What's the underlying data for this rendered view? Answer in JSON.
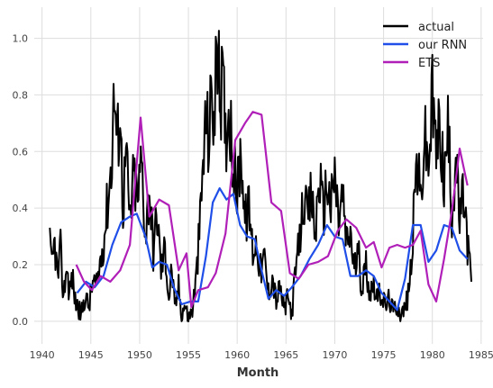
{
  "chart_data": {
    "type": "line",
    "title": "",
    "xlabel": "Month",
    "ylabel": "",
    "xlim": [
      1939.2,
      1985.2
    ],
    "ylim": [
      -0.08,
      1.11
    ],
    "xticks": [
      "1940",
      "1945",
      "1950",
      "1955",
      "1960",
      "1965",
      "1970",
      "1975",
      "1980",
      "1985"
    ],
    "yticks": [
      "0.0",
      "0.2",
      "0.4",
      "0.6",
      "0.8",
      "1.0"
    ],
    "grid": true,
    "legend_position": "top-right",
    "series": [
      {
        "name": "actual",
        "color": "#000000",
        "x": [
          1940.8,
          1941.0,
          1941.3,
          1941.6,
          1941.9,
          1942.2,
          1942.5,
          1942.8,
          1943.1,
          1943.4,
          1943.7,
          1944.0,
          1944.4,
          1944.8,
          1945.2,
          1945.6,
          1946.0,
          1946.4,
          1946.8,
          1947.1,
          1947.4,
          1947.7,
          1948.0,
          1948.3,
          1948.6,
          1949.0,
          1949.4,
          1949.8,
          1950.2,
          1950.6,
          1951.0,
          1951.4,
          1951.8,
          1952.2,
          1952.6,
          1953.0,
          1953.3,
          1953.6,
          1954.0,
          1954.3,
          1954.6,
          1955.0,
          1955.4,
          1955.8,
          1956.2,
          1956.5,
          1956.8,
          1957.1,
          1957.4,
          1957.7,
          1957.9,
          1958.2,
          1958.5,
          1958.8,
          1959.2,
          1959.6,
          1960.0,
          1960.4,
          1960.8,
          1961.2,
          1961.6,
          1962.0,
          1962.4,
          1962.8,
          1963.2,
          1963.6,
          1964.0,
          1964.4,
          1964.8,
          1965.2,
          1965.6,
          1966.0,
          1966.4,
          1966.8,
          1967.2,
          1967.6,
          1968.0,
          1968.4,
          1968.8,
          1969.2,
          1969.6,
          1970.0,
          1970.4,
          1970.8,
          1971.2,
          1971.6,
          1972.0,
          1972.4,
          1972.8,
          1973.2,
          1973.6,
          1974.0,
          1974.4,
          1974.8,
          1975.2,
          1975.6,
          1976.0,
          1976.4,
          1976.8,
          1977.2,
          1977.6,
          1978.0,
          1978.4,
          1978.8,
          1979.2,
          1979.6,
          1980.0,
          1980.4,
          1980.8,
          1981.2,
          1981.6,
          1982.0,
          1982.4,
          1982.8,
          1983.2,
          1983.6,
          1984.0
        ],
        "y": [
          0.27,
          0.18,
          0.28,
          0.15,
          0.25,
          0.08,
          0.2,
          0.1,
          0.16,
          0.07,
          0.05,
          0.02,
          0.09,
          0.05,
          0.14,
          0.12,
          0.22,
          0.31,
          0.45,
          0.55,
          0.82,
          0.62,
          0.75,
          0.4,
          0.6,
          0.35,
          0.52,
          0.42,
          0.58,
          0.3,
          0.47,
          0.25,
          0.38,
          0.18,
          0.26,
          0.08,
          0.19,
          0.04,
          0.12,
          0.02,
          0.06,
          0.01,
          0.04,
          0.15,
          0.35,
          0.55,
          0.72,
          0.63,
          0.84,
          0.66,
          1.05,
          0.78,
          0.85,
          0.65,
          0.77,
          0.55,
          0.45,
          0.62,
          0.35,
          0.4,
          0.25,
          0.28,
          0.18,
          0.22,
          0.1,
          0.16,
          0.07,
          0.12,
          0.04,
          0.08,
          0.03,
          0.18,
          0.28,
          0.44,
          0.35,
          0.45,
          0.3,
          0.52,
          0.38,
          0.5,
          0.4,
          0.52,
          0.35,
          0.45,
          0.27,
          0.32,
          0.18,
          0.24,
          0.12,
          0.2,
          0.1,
          0.14,
          0.08,
          0.1,
          0.05,
          0.08,
          0.03,
          0.06,
          0.02,
          0.05,
          0.1,
          0.3,
          0.58,
          0.42,
          0.65,
          0.55,
          0.78,
          0.6,
          0.7,
          0.48,
          0.68,
          0.38,
          0.58,
          0.35,
          0.45,
          0.28,
          0.14
        ],
        "yrange": [
          0.0,
          1.06
        ]
      },
      {
        "name": "our RNN",
        "color": "#1f4fe8",
        "x": [
          1943.6,
          1944.5,
          1945.4,
          1946.3,
          1947.2,
          1948.1,
          1949.0,
          1949.7,
          1950.6,
          1951.3,
          1952.0,
          1952.8,
          1953.5,
          1954.3,
          1955.2,
          1956.0,
          1956.8,
          1957.5,
          1958.2,
          1958.9,
          1959.6,
          1960.3,
          1961.0,
          1961.8,
          1962.5,
          1963.2,
          1964.0,
          1964.8,
          1965.6,
          1966.5,
          1967.4,
          1968.3,
          1969.2,
          1970.0,
          1970.8,
          1971.6,
          1972.4,
          1973.2,
          1974.0,
          1974.8,
          1975.6,
          1976.4,
          1977.2,
          1978.0,
          1978.8,
          1979.6,
          1980.4,
          1981.2,
          1982.0,
          1982.8,
          1983.6
        ],
        "y": [
          0.1,
          0.14,
          0.12,
          0.16,
          0.27,
          0.35,
          0.37,
          0.38,
          0.3,
          0.19,
          0.21,
          0.2,
          0.12,
          0.06,
          0.07,
          0.07,
          0.23,
          0.42,
          0.47,
          0.43,
          0.45,
          0.34,
          0.3,
          0.29,
          0.18,
          0.08,
          0.11,
          0.09,
          0.12,
          0.16,
          0.22,
          0.27,
          0.34,
          0.3,
          0.29,
          0.16,
          0.16,
          0.18,
          0.16,
          0.1,
          0.07,
          0.04,
          0.15,
          0.34,
          0.34,
          0.21,
          0.25,
          0.34,
          0.33,
          0.25,
          0.22
        ]
      },
      {
        "name": "ETS",
        "color": "#b01fb8",
        "x": [
          1943.5,
          1944.3,
          1945.1,
          1946.0,
          1947.0,
          1948.0,
          1949.0,
          1950.1,
          1951.0,
          1952.0,
          1953.0,
          1954.0,
          1954.8,
          1955.3,
          1956.0,
          1957.0,
          1957.8,
          1958.8,
          1959.8,
          1960.8,
          1961.6,
          1962.5,
          1963.5,
          1964.5,
          1965.4,
          1966.3,
          1967.3,
          1968.3,
          1969.3,
          1970.3,
          1971.2,
          1972.2,
          1973.2,
          1974.0,
          1974.8,
          1975.6,
          1976.4,
          1977.2,
          1978.0,
          1978.8,
          1979.6,
          1980.4,
          1981.2,
          1982.0,
          1982.8,
          1983.6
        ],
        "y": [
          0.2,
          0.14,
          0.11,
          0.16,
          0.14,
          0.18,
          0.27,
          0.72,
          0.37,
          0.43,
          0.41,
          0.18,
          0.24,
          0.05,
          0.11,
          0.12,
          0.17,
          0.31,
          0.64,
          0.7,
          0.74,
          0.73,
          0.42,
          0.39,
          0.17,
          0.15,
          0.2,
          0.21,
          0.23,
          0.32,
          0.36,
          0.33,
          0.26,
          0.28,
          0.19,
          0.26,
          0.27,
          0.26,
          0.27,
          0.32,
          0.13,
          0.07,
          0.22,
          0.39,
          0.61,
          0.48
        ]
      }
    ]
  }
}
